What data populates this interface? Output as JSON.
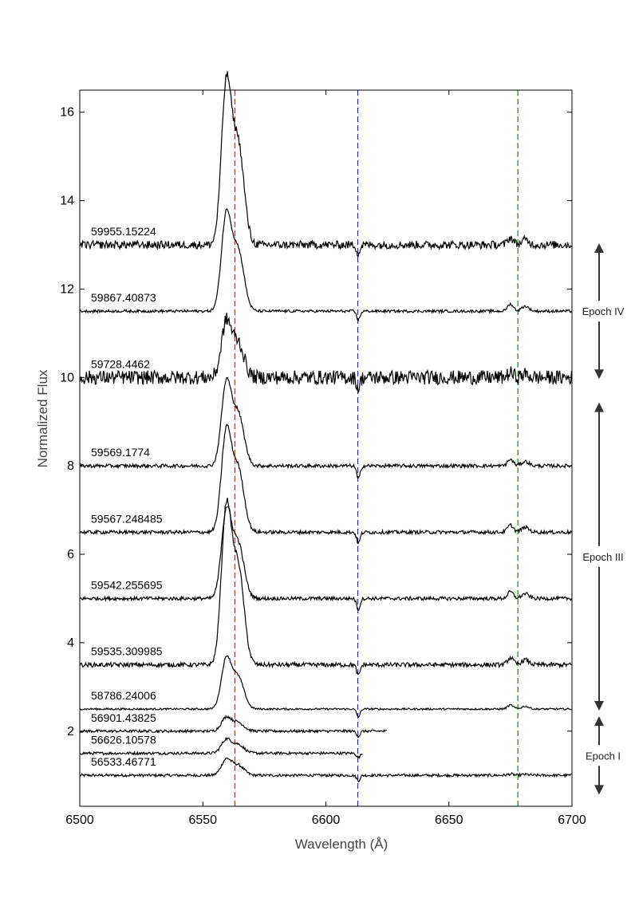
{
  "chart_data": {
    "type": "line",
    "title": "",
    "xlabel": "Wavelength (Å)",
    "ylabel": "Normalized Flux",
    "xlim": [
      6500,
      6700
    ],
    "ylim": [
      0.3,
      16.5
    ],
    "x_ticks": [
      6500,
      6550,
      6600,
      6650,
      6700
    ],
    "y_ticks": [
      2,
      4,
      6,
      8,
      10,
      12,
      14,
      16
    ],
    "grid": false,
    "reference_lines": [
      {
        "x": 6563,
        "color": "#cc0000"
      },
      {
        "x": 6613,
        "color": "#0000cc"
      },
      {
        "x": 6678,
        "color": "#006600"
      }
    ],
    "series": [
      {
        "name": "56533.46771",
        "baseline": 1.0,
        "x_end": 6700,
        "peak": 0.35,
        "noise": 0.03,
        "dip": 0.12
      },
      {
        "name": "56626.10578",
        "baseline": 1.5,
        "x_end": 6615,
        "peak": 0.3,
        "noise": 0.03,
        "dip": 0.1
      },
      {
        "name": "56901.43825",
        "baseline": 2.0,
        "x_end": 6625,
        "peak": 0.3,
        "noise": 0.03,
        "dip": 0.12
      },
      {
        "name": "58786.24006",
        "baseline": 2.5,
        "x_end": 6700,
        "peak": 1.1,
        "noise": 0.02,
        "dip": 0.18
      },
      {
        "name": "59535.309985",
        "baseline": 3.5,
        "x_end": 6700,
        "peak": 3.4,
        "noise": 0.05,
        "dip": 0.25
      },
      {
        "name": "59542.255695",
        "baseline": 5.0,
        "x_end": 6700,
        "peak": 1.9,
        "noise": 0.04,
        "dip": 0.25
      },
      {
        "name": "59567.248485",
        "baseline": 6.5,
        "x_end": 6700,
        "peak": 2.2,
        "noise": 0.04,
        "dip": 0.25
      },
      {
        "name": "59569.1774",
        "baseline": 8.0,
        "x_end": 6700,
        "peak": 1.8,
        "noise": 0.04,
        "dip": 0.3
      },
      {
        "name": "59728.4462",
        "baseline": 10.0,
        "x_end": 6700,
        "peak": 1.2,
        "noise": 0.16,
        "dip": 0.25
      },
      {
        "name": "59867.40873",
        "baseline": 11.5,
        "x_end": 6700,
        "peak": 2.1,
        "noise": 0.03,
        "dip": 0.2
      },
      {
        "name": "59955.15224",
        "baseline": 13.0,
        "x_end": 6700,
        "peak": 3.5,
        "noise": 0.09,
        "dip": 0.2
      }
    ],
    "epochs": [
      {
        "label": "Epoch IV",
        "from": 13.0,
        "to": 10.0
      },
      {
        "label": "Epoch III",
        "from": 9.4,
        "to": 2.5
      },
      {
        "label": "Epoch I",
        "from": 2.3,
        "to": 0.6
      }
    ]
  }
}
